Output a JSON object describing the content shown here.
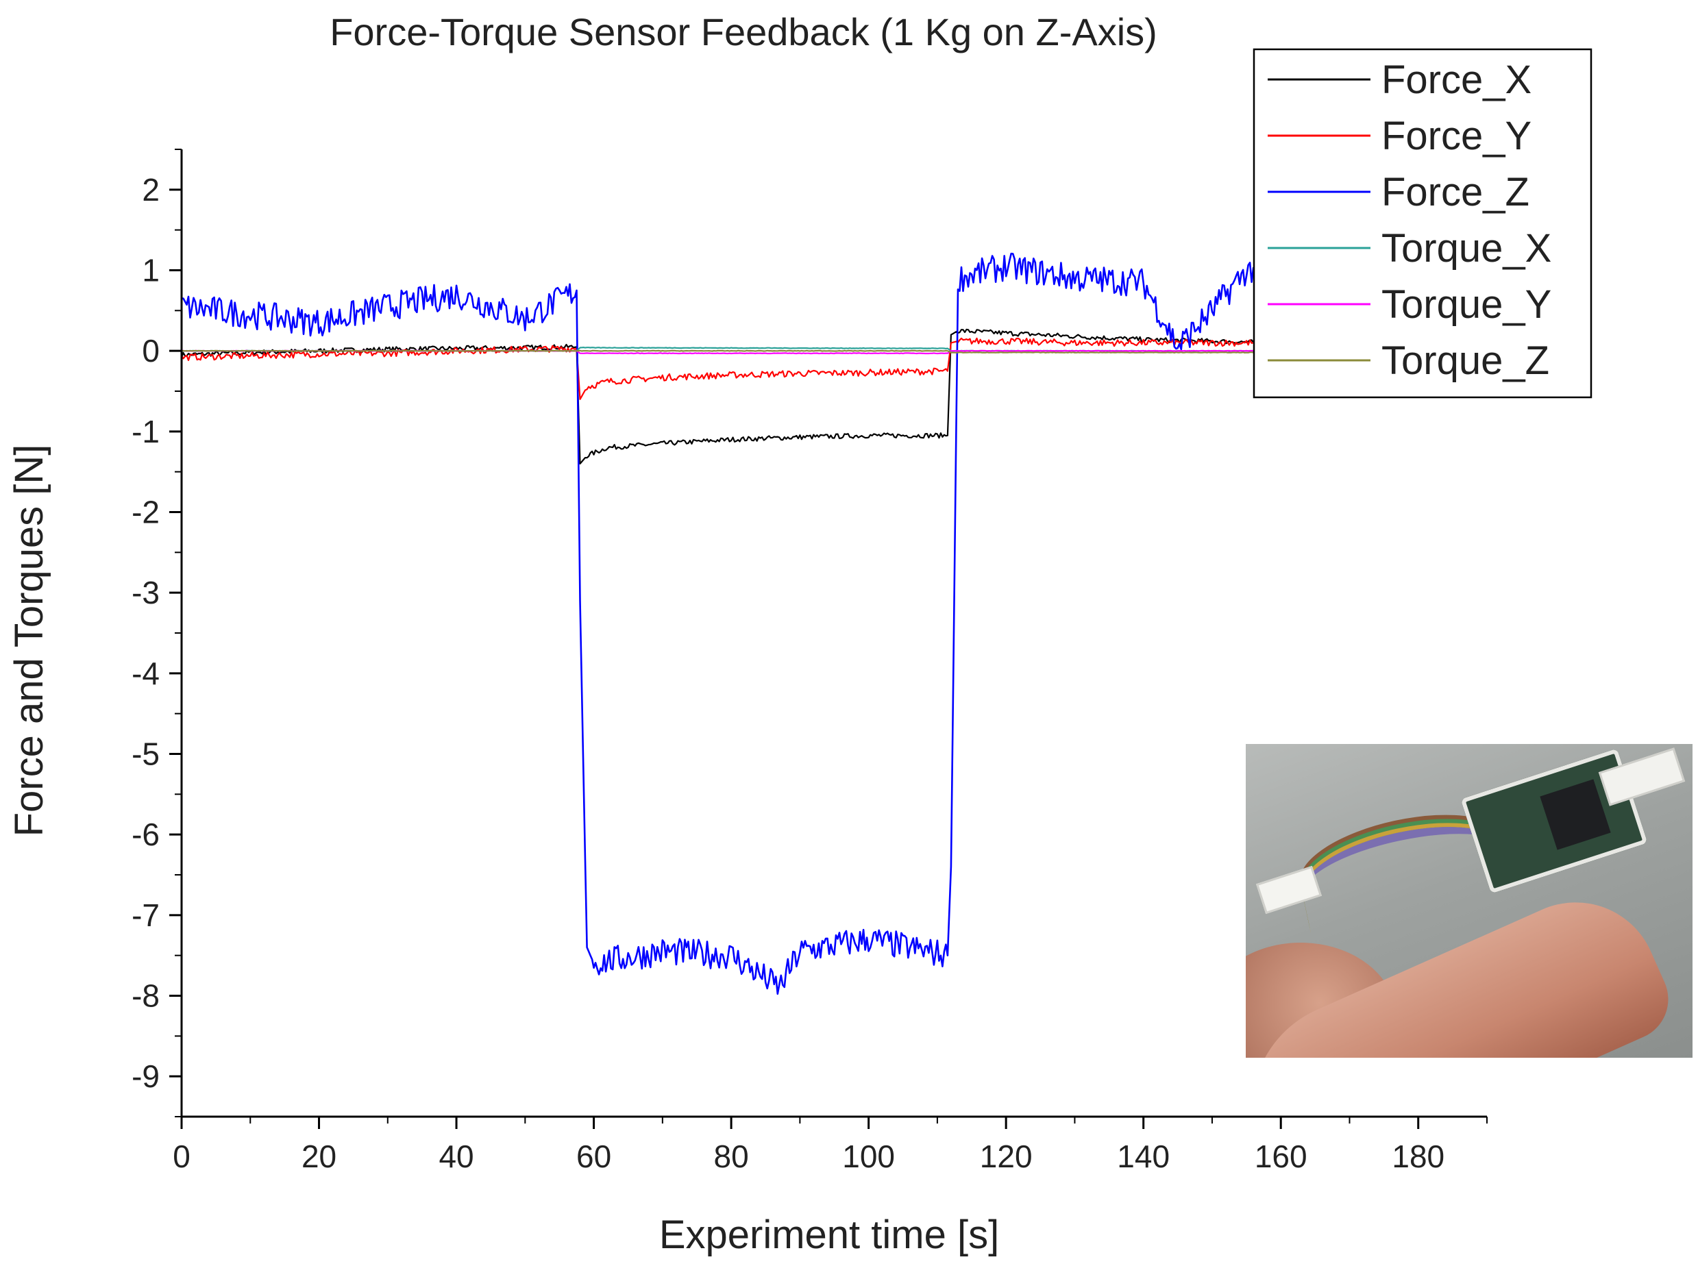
{
  "chart_data": {
    "type": "line",
    "title": "Force-Torque Sensor Feedback (1 Kg on Z-Axis)",
    "xlabel": "Experiment time [s]",
    "ylabel": "Force and Torques [N]",
    "xlim": [
      0,
      190
    ],
    "ylim": [
      -9.5,
      2.5
    ],
    "xticks": [
      "0",
      "20",
      "40",
      "60",
      "80",
      "100",
      "120",
      "140",
      "160",
      "180"
    ],
    "yticks": [
      "2",
      "1",
      "0",
      "-1",
      "-2",
      "-3",
      "-4",
      "-5",
      "-6",
      "-7",
      "-8",
      "-9"
    ],
    "xtick_values": [
      0,
      20,
      40,
      60,
      80,
      100,
      120,
      140,
      160,
      180
    ],
    "ytick_values": [
      2,
      1,
      0,
      -1,
      -2,
      -3,
      -4,
      -5,
      -6,
      -7,
      -8,
      -9
    ],
    "grid": false,
    "legend_position": "top-right",
    "series": [
      {
        "name": "Force_X",
        "color": "#000000",
        "x": [
          0,
          10,
          20,
          30,
          40,
          50,
          57.5,
          58,
          59,
          62,
          70,
          80,
          90,
          100,
          111.5,
          112,
          113,
          120,
          130,
          140,
          150,
          160
        ],
        "y": [
          -0.05,
          -0.02,
          0,
          0.02,
          0.03,
          0.04,
          0.05,
          -1.4,
          -1.3,
          -1.2,
          -1.15,
          -1.1,
          -1.07,
          -1.05,
          -1.05,
          0.2,
          0.25,
          0.22,
          0.18,
          0.14,
          0.12,
          0.1
        ]
      },
      {
        "name": "Force_Y",
        "color": "#ff0000",
        "x": [
          0,
          10,
          20,
          30,
          40,
          50,
          57.5,
          58,
          59,
          62,
          70,
          80,
          90,
          100,
          111.5,
          112,
          113,
          120,
          130,
          140,
          150,
          160
        ],
        "y": [
          -0.08,
          -0.06,
          -0.04,
          -0.03,
          0,
          0.02,
          0.03,
          -0.6,
          -0.45,
          -0.38,
          -0.33,
          -0.3,
          -0.28,
          -0.27,
          -0.25,
          0.1,
          0.12,
          0.12,
          0.1,
          0.1,
          0.1,
          0.1
        ]
      },
      {
        "name": "Force_Z",
        "color": "#0000ff",
        "x": [
          0,
          10,
          20,
          30,
          40,
          50,
          57.5,
          58,
          59,
          60,
          70,
          80,
          87,
          90,
          100,
          111.5,
          112,
          113,
          120,
          130,
          140,
          145,
          150,
          155,
          160
        ],
        "y": [
          0.55,
          0.45,
          0.35,
          0.55,
          0.7,
          0.4,
          0.75,
          -3.1,
          -7.4,
          -7.6,
          -7.45,
          -7.5,
          -7.9,
          -7.45,
          -7.3,
          -7.5,
          -6.4,
          0.9,
          1.05,
          0.9,
          0.85,
          0.05,
          0.5,
          1.0,
          1.0
        ]
      },
      {
        "name": "Torque_X",
        "color": "#2aa198",
        "x": [
          0,
          57.5,
          58,
          111.5,
          112,
          160
        ],
        "y": [
          0.0,
          0.0,
          0.04,
          0.03,
          0.0,
          0.0
        ]
      },
      {
        "name": "Torque_Y",
        "color": "#ff00ff",
        "x": [
          0,
          57.5,
          58,
          111.5,
          112,
          160
        ],
        "y": [
          0.0,
          0.0,
          -0.03,
          -0.03,
          0.0,
          0.0
        ]
      },
      {
        "name": "Torque_Z",
        "color": "#8b8b3a",
        "x": [
          0,
          57.5,
          58,
          111.5,
          112,
          160
        ],
        "y": [
          0.0,
          0.0,
          0.0,
          0.0,
          -0.02,
          -0.02
        ]
      }
    ]
  }
}
